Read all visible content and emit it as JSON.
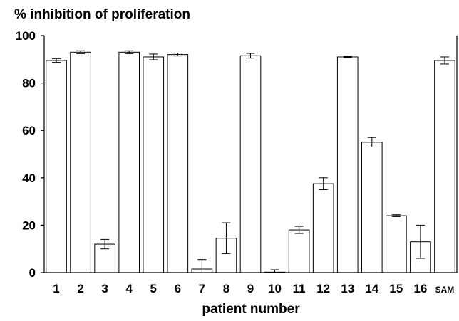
{
  "chart_data": {
    "type": "bar",
    "title": "% inhibition of proliferation",
    "xlabel": "patient number",
    "ylabel": "",
    "ylim": [
      0,
      100
    ],
    "yticks": [
      0,
      20,
      40,
      60,
      80,
      100
    ],
    "grid": false,
    "categories": [
      "1",
      "2",
      "3",
      "4",
      "5",
      "6",
      "7",
      "8",
      "9",
      "10",
      "11",
      "12",
      "13",
      "14",
      "15",
      "16",
      "SAM"
    ],
    "values": [
      89.5,
      93.0,
      12.0,
      93.0,
      91.0,
      92.0,
      1.5,
      14.5,
      91.5,
      0.2,
      18.0,
      37.5,
      91.0,
      55.0,
      24.0,
      13.0,
      89.5
    ],
    "errors": [
      0.8,
      0.6,
      2.0,
      0.6,
      1.2,
      0.6,
      4.0,
      6.5,
      1.0,
      1.0,
      1.5,
      2.5,
      0.3,
      2.0,
      0.4,
      7.0,
      1.5
    ]
  }
}
